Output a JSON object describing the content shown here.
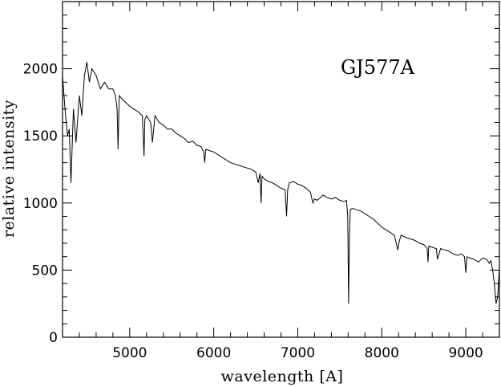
{
  "chart_data": {
    "type": "line",
    "title": "",
    "annotation": "GJ577A",
    "xlabel": "wavelength [A]",
    "ylabel": "relative intensity",
    "xlim": [
      4200,
      9400
    ],
    "ylim": [
      0,
      2500
    ],
    "x_ticks": [
      5000,
      6000,
      7000,
      8000,
      9000
    ],
    "y_ticks": [
      0,
      500,
      1000,
      1500,
      2000
    ],
    "grid": false,
    "legend": "none",
    "line_color": "#000000",
    "series": [
      {
        "x": [
          4200,
          4230,
          4260,
          4280,
          4300,
          4330,
          4360,
          4400,
          4430,
          4460,
          4490,
          4520,
          4550,
          4600,
          4650,
          4700,
          4750,
          4800,
          4830,
          4850,
          4861,
          4875,
          4900,
          4950,
          5000,
          5050,
          5100,
          5150,
          5170,
          5180,
          5200,
          5250,
          5270,
          5300,
          5350,
          5400,
          5450,
          5500,
          5550,
          5600,
          5650,
          5700,
          5750,
          5800,
          5850,
          5880,
          5893,
          5905,
          5950,
          6000,
          6050,
          6100,
          6150,
          6200,
          6250,
          6300,
          6350,
          6400,
          6450,
          6500,
          6530,
          6550,
          6563,
          6575,
          6600,
          6650,
          6700,
          6750,
          6800,
          6850,
          6867,
          6880,
          6900,
          6950,
          7000,
          7050,
          7100,
          7150,
          7180,
          7200,
          7230,
          7270,
          7300,
          7350,
          7400,
          7450,
          7500,
          7550,
          7580,
          7595,
          7605,
          7615,
          7625,
          7650,
          7700,
          7750,
          7800,
          7850,
          7900,
          7950,
          8000,
          8050,
          8100,
          8150,
          8190,
          8210,
          8230,
          8300,
          8350,
          8400,
          8450,
          8500,
          8540,
          8550,
          8560,
          8600,
          8650,
          8662,
          8700,
          8750,
          8800,
          8850,
          8900,
          8950,
          8985,
          9000,
          9015,
          9050,
          9100,
          9150,
          9200,
          9250,
          9280,
          9300,
          9320,
          9340,
          9360,
          9380,
          9400
        ],
        "y": [
          1950,
          1700,
          1500,
          1550,
          1150,
          1700,
          1450,
          1800,
          1650,
          1950,
          2050,
          1900,
          2000,
          1950,
          1850,
          1900,
          1850,
          1850,
          1800,
          1700,
          1400,
          1800,
          1780,
          1750,
          1720,
          1700,
          1680,
          1650,
          1350,
          1620,
          1650,
          1600,
          1450,
          1650,
          1600,
          1580,
          1550,
          1550,
          1520,
          1500,
          1480,
          1450,
          1460,
          1430,
          1420,
          1380,
          1300,
          1400,
          1390,
          1380,
          1360,
          1340,
          1320,
          1300,
          1290,
          1280,
          1270,
          1260,
          1250,
          1230,
          1150,
          1220,
          1000,
          1200,
          1180,
          1160,
          1150,
          1130,
          1110,
          1100,
          900,
          1100,
          1150,
          1160,
          1140,
          1130,
          1110,
          1080,
          1000,
          1030,
          1020,
          1040,
          1060,
          1040,
          1030,
          1040,
          1020,
          1010,
          1020,
          900,
          250,
          750,
          950,
          960,
          950,
          940,
          920,
          900,
          880,
          850,
          820,
          800,
          780,
          760,
          650,
          720,
          760,
          740,
          730,
          720,
          700,
          690,
          660,
          560,
          680,
          670,
          660,
          580,
          660,
          650,
          640,
          620,
          610,
          620,
          600,
          480,
          600,
          590,
          580,
          560,
          590,
          580,
          550,
          570,
          500,
          400,
          250,
          300,
          520
        ]
      }
    ]
  }
}
